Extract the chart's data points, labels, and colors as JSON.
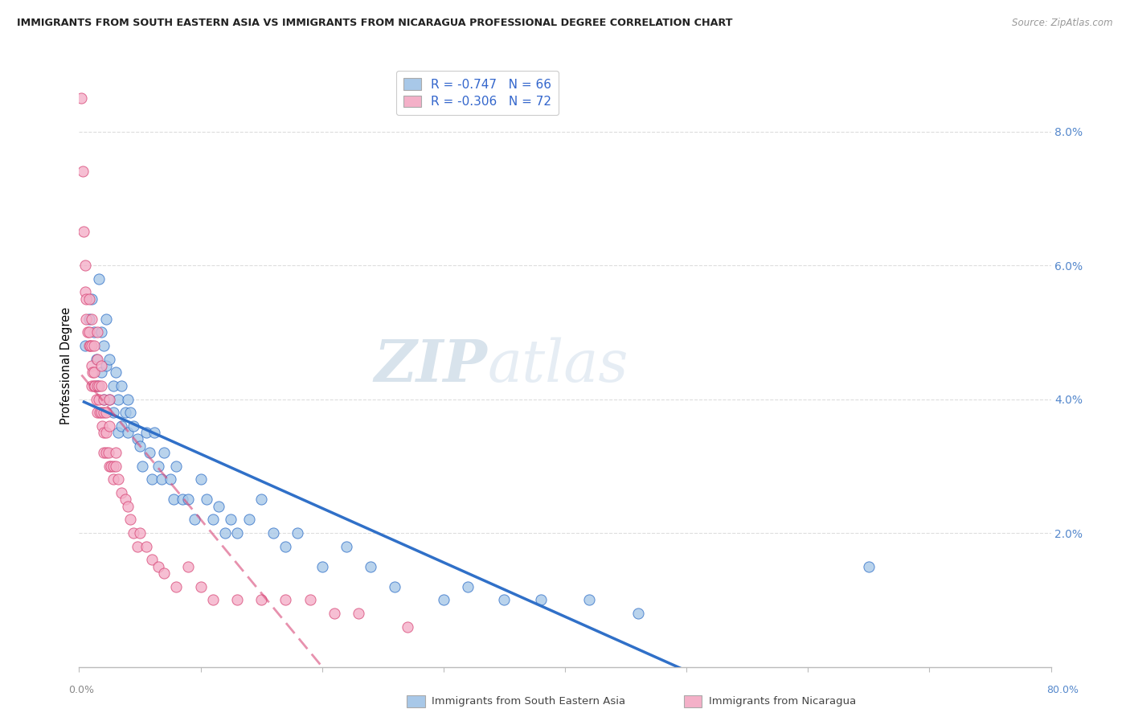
{
  "title": "IMMIGRANTS FROM SOUTH EASTERN ASIA VS IMMIGRANTS FROM NICARAGUA PROFESSIONAL DEGREE CORRELATION CHART",
  "source": "Source: ZipAtlas.com",
  "ylabel": "Professional Degree",
  "legend_label1": "Immigrants from South Eastern Asia",
  "legend_label2": "Immigrants from Nicaragua",
  "R1": "-0.747",
  "N1": "66",
  "R2": "-0.306",
  "N2": "72",
  "color_blue": "#A8C8E8",
  "color_pink": "#F4B0C8",
  "trendline_blue": "#3070C8",
  "trendline_pink": "#D84878",
  "watermark_zip": "ZIP",
  "watermark_atlas": "atlas",
  "right_ytick_vals": [
    0.02,
    0.04,
    0.06,
    0.08
  ],
  "xlim": [
    0,
    0.8
  ],
  "ylim": [
    0,
    0.09
  ],
  "blue_x": [
    0.005,
    0.008,
    0.01,
    0.012,
    0.014,
    0.015,
    0.016,
    0.018,
    0.018,
    0.02,
    0.02,
    0.022,
    0.022,
    0.025,
    0.025,
    0.028,
    0.028,
    0.03,
    0.032,
    0.032,
    0.035,
    0.035,
    0.038,
    0.04,
    0.04,
    0.042,
    0.045,
    0.048,
    0.05,
    0.052,
    0.055,
    0.058,
    0.06,
    0.062,
    0.065,
    0.068,
    0.07,
    0.075,
    0.078,
    0.08,
    0.085,
    0.09,
    0.095,
    0.1,
    0.105,
    0.11,
    0.115,
    0.12,
    0.125,
    0.13,
    0.14,
    0.15,
    0.16,
    0.17,
    0.18,
    0.2,
    0.22,
    0.24,
    0.26,
    0.3,
    0.32,
    0.35,
    0.38,
    0.42,
    0.46,
    0.65
  ],
  "blue_y": [
    0.048,
    0.052,
    0.055,
    0.05,
    0.046,
    0.042,
    0.058,
    0.044,
    0.05,
    0.048,
    0.04,
    0.052,
    0.045,
    0.04,
    0.046,
    0.038,
    0.042,
    0.044,
    0.04,
    0.035,
    0.042,
    0.036,
    0.038,
    0.04,
    0.035,
    0.038,
    0.036,
    0.034,
    0.033,
    0.03,
    0.035,
    0.032,
    0.028,
    0.035,
    0.03,
    0.028,
    0.032,
    0.028,
    0.025,
    0.03,
    0.025,
    0.025,
    0.022,
    0.028,
    0.025,
    0.022,
    0.024,
    0.02,
    0.022,
    0.02,
    0.022,
    0.025,
    0.02,
    0.018,
    0.02,
    0.015,
    0.018,
    0.015,
    0.012,
    0.01,
    0.012,
    0.01,
    0.01,
    0.01,
    0.008,
    0.015
  ],
  "pink_x": [
    0.002,
    0.003,
    0.004,
    0.005,
    0.005,
    0.006,
    0.006,
    0.007,
    0.008,
    0.008,
    0.008,
    0.009,
    0.01,
    0.01,
    0.01,
    0.01,
    0.011,
    0.012,
    0.012,
    0.012,
    0.013,
    0.014,
    0.015,
    0.015,
    0.015,
    0.015,
    0.016,
    0.016,
    0.017,
    0.018,
    0.018,
    0.018,
    0.019,
    0.02,
    0.02,
    0.02,
    0.02,
    0.022,
    0.022,
    0.022,
    0.024,
    0.025,
    0.025,
    0.025,
    0.026,
    0.028,
    0.028,
    0.03,
    0.03,
    0.032,
    0.035,
    0.038,
    0.04,
    0.042,
    0.045,
    0.048,
    0.05,
    0.055,
    0.06,
    0.065,
    0.07,
    0.08,
    0.09,
    0.1,
    0.11,
    0.13,
    0.15,
    0.17,
    0.19,
    0.21,
    0.23,
    0.27
  ],
  "pink_y": [
    0.085,
    0.074,
    0.065,
    0.06,
    0.056,
    0.052,
    0.055,
    0.05,
    0.055,
    0.05,
    0.048,
    0.048,
    0.052,
    0.048,
    0.045,
    0.042,
    0.044,
    0.048,
    0.044,
    0.042,
    0.042,
    0.04,
    0.05,
    0.046,
    0.042,
    0.038,
    0.04,
    0.042,
    0.038,
    0.045,
    0.042,
    0.038,
    0.036,
    0.04,
    0.038,
    0.035,
    0.032,
    0.038,
    0.035,
    0.032,
    0.032,
    0.04,
    0.036,
    0.03,
    0.03,
    0.03,
    0.028,
    0.032,
    0.03,
    0.028,
    0.026,
    0.025,
    0.024,
    0.022,
    0.02,
    0.018,
    0.02,
    0.018,
    0.016,
    0.015,
    0.014,
    0.012,
    0.015,
    0.012,
    0.01,
    0.01,
    0.01,
    0.01,
    0.01,
    0.008,
    0.008,
    0.006
  ]
}
